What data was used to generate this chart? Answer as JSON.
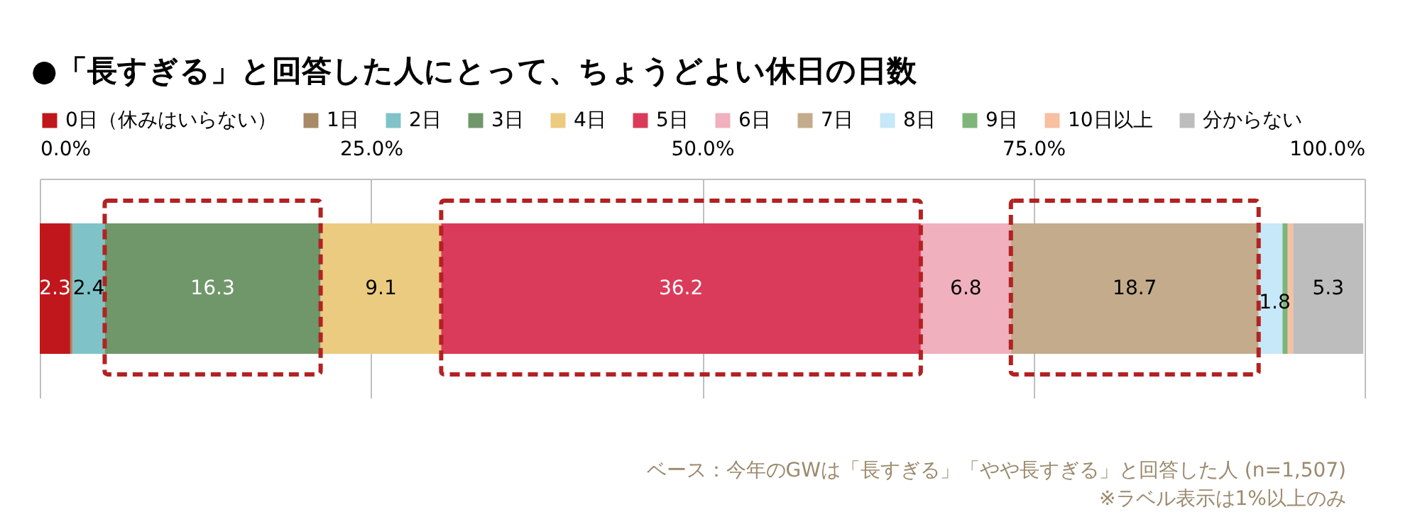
{
  "chart_data": {
    "type": "bar",
    "title": "●「長すぎる」と回答した人にとって、ちょうどよい休日の日数",
    "orientation": "horizontal",
    "stacked": true,
    "categories": [
      null
    ],
    "series": [
      {
        "name": "0日（休みはいらない）",
        "color": "#c0171c",
        "values": [
          2.3
        ],
        "value_labels": [
          "2.3"
        ]
      },
      {
        "name": "1日",
        "color": "#a88a66",
        "values": [
          0.2
        ],
        "value_labels": [
          null
        ]
      },
      {
        "name": "2日",
        "color": "#7fc3c8",
        "values": [
          2.4
        ],
        "value_labels": [
          "2.4"
        ]
      },
      {
        "name": "3日",
        "color": "#70976a",
        "values": [
          16.3
        ],
        "value_labels": [
          "16.3"
        ]
      },
      {
        "name": "4日",
        "color": "#ebcb80",
        "values": [
          9.1
        ],
        "value_labels": [
          "9.1"
        ]
      },
      {
        "name": "5日",
        "color": "#db3b5a",
        "values": [
          36.2
        ],
        "value_labels": [
          "36.2"
        ]
      },
      {
        "name": "6日",
        "color": "#f0b0be",
        "values": [
          6.8
        ],
        "value_labels": [
          "6.8"
        ]
      },
      {
        "name": "7日",
        "color": "#c3ab8b",
        "values": [
          18.7
        ],
        "value_labels": [
          "18.7"
        ]
      },
      {
        "name": "8日",
        "color": "#c6e8f8",
        "values": [
          1.8
        ],
        "value_labels": [
          "1.8"
        ]
      },
      {
        "name": "9日",
        "color": "#7fb57a",
        "values": [
          0.4
        ],
        "value_labels": [
          null
        ]
      },
      {
        "name": "10日以上",
        "color": "#f7c0a0",
        "values": [
          0.4
        ],
        "value_labels": [
          null
        ]
      },
      {
        "name": "分からない",
        "color": "#bdbdbd",
        "values": [
          5.3
        ],
        "value_labels": [
          "5.3"
        ]
      }
    ],
    "xlim": [
      0,
      100
    ],
    "xticks": [
      {
        "value": 0,
        "label": "0.0%"
      },
      {
        "value": 25,
        "label": "25.0%"
      },
      {
        "value": 50,
        "label": "50.0%"
      },
      {
        "value": 75,
        "label": "75.0%"
      },
      {
        "value": 100,
        "label": "100.0%"
      }
    ],
    "grid": "x",
    "legend": "top",
    "annotations": [
      "ベース：今年のGWは「長すぎる」「やや長すぎる」と回答した人 (n=1,507)",
      "※ラベル表示は1%以上のみ"
    ]
  }
}
